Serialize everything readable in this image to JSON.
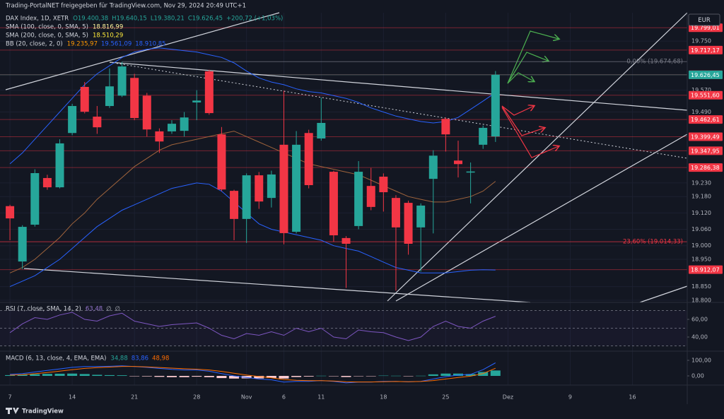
{
  "header": {
    "text": "Trading-PortalNET freigegeben für TradingView.com, Nov 29, 2024 20:49 UTC+1"
  },
  "currency": "EUR",
  "footer": "TradingView",
  "chart_data": {
    "type": "candlestick",
    "up_color": "#26a69a",
    "down_color": "#f23645",
    "grid": true,
    "legend": [
      {
        "name": "DAX Index, 1D, XETR",
        "values": [
          "O19.400,38",
          "H19.640,15",
          "L19.380,21",
          "C19.626,45",
          "+200,72 (+1,03%)"
        ],
        "value_colors": [
          "#26a69a",
          "#26a69a",
          "#26a69a",
          "#26a69a",
          "#26a69a"
        ]
      },
      {
        "name": "SMA (100, close, 0, SMA, 5)",
        "values": [
          "18.816,99"
        ],
        "value_colors": [
          "#fff59d"
        ]
      },
      {
        "name": "SMA (200, close, 0, SMA, 5)",
        "values": [
          "18.510,29"
        ],
        "value_colors": [
          "#ffeb3b"
        ]
      },
      {
        "name": "BB (20, close, 2, 0)",
        "values": [
          "19.235,97",
          "19.561,09",
          "18.910,85"
        ],
        "value_colors": [
          "#ff9800",
          "#2962ff",
          "#2962ff"
        ]
      }
    ],
    "x": [
      0,
      1,
      2,
      3,
      4,
      5,
      6,
      7,
      8,
      9,
      10,
      11,
      12,
      13,
      14,
      15,
      16,
      17,
      18,
      19,
      20,
      21,
      22,
      23,
      24,
      25,
      26,
      27,
      28,
      29,
      30,
      31,
      32,
      33,
      34,
      35,
      36,
      37,
      38,
      39
    ],
    "open": [
      19145,
      18942,
      19077,
      19248,
      19214,
      19413,
      19582,
      19473,
      19512,
      19550,
      19615,
      19550,
      19419,
      19419,
      19421,
      19525,
      19639,
      19408,
      19201,
      19098,
      19258,
      19175,
      19370,
      19051,
      19413,
      19393,
      19271,
      19028,
      19072,
      19219,
      19253,
      19175,
      19157,
      19067,
      19245,
      19465,
      19312,
      19268,
      19370,
      19400.38
    ],
    "high": [
      19150,
      19075,
      19280,
      19260,
      19390,
      19520,
      19600,
      19512,
      19650,
      19674,
      19630,
      19560,
      19430,
      19460,
      19490,
      19570,
      19645,
      19435,
      19205,
      19265,
      19270,
      19275,
      19568,
      19420,
      19425,
      19543,
      19275,
      19035,
      19310,
      19285,
      19265,
      19185,
      19165,
      19155,
      19350,
      19470,
      19385,
      19305,
      19440,
      19640.15
    ],
    "low": [
      19020,
      18915,
      19070,
      19205,
      19210,
      19405,
      19485,
      19410,
      19505,
      19545,
      19460,
      19400,
      19340,
      19410,
      19400,
      19460,
      19480,
      19200,
      19020,
      19010,
      19135,
      19140,
      19005,
      19045,
      19210,
      19385,
      19015,
      18845,
      19060,
      19130,
      19125,
      18835,
      18967,
      18905,
      19045,
      19345,
      19250,
      19155,
      19355,
      19380.21
    ],
    "close": [
      19100,
      19069,
      19266,
      19214,
      19375,
      19512,
      19491,
      19434,
      19584,
      19657,
      19468,
      19426,
      19382,
      19447,
      19470,
      19532,
      19486,
      19206,
      19098,
      19258,
      19162,
      19261,
      19046,
      19370,
      19222,
      19450,
      19038,
      19007,
      19271,
      19142,
      19196,
      19067,
      19007,
      19147,
      19330,
      19408,
      19299,
      19272,
      19432,
      19626.45
    ],
    "overlays": [
      {
        "color": "#2962ff",
        "values": [
          19300,
          19340,
          19390,
          19440,
          19490,
          19540,
          19590,
          19630,
          19660,
          19690,
          19710,
          19720,
          19725,
          19720,
          19715,
          19710,
          19700,
          19690,
          19670,
          19640,
          19615,
          19600,
          19590,
          19575,
          19565,
          19560,
          19550,
          19540,
          19525,
          19505,
          19490,
          19475,
          19465,
          19455,
          19450,
          19455,
          19470,
          19500,
          19530,
          19561.09
        ]
      },
      {
        "color": "#2962ff",
        "values": [
          18850,
          18870,
          18890,
          18920,
          18950,
          18990,
          19030,
          19070,
          19100,
          19130,
          19150,
          19170,
          19190,
          19210,
          19220,
          19230,
          19225,
          19200,
          19160,
          19120,
          19080,
          19060,
          19050,
          19040,
          19030,
          19020,
          19000,
          18990,
          18980,
          18960,
          18940,
          18920,
          18910,
          18900,
          18900,
          18900,
          18905,
          18910,
          18912,
          18910.85
        ]
      },
      {
        "color": "#a0643c",
        "values": [
          18900,
          18920,
          18950,
          18990,
          19030,
          19080,
          19120,
          19170,
          19210,
          19250,
          19290,
          19320,
          19350,
          19370,
          19380,
          19390,
          19400,
          19410,
          19420,
          19400,
          19380,
          19360,
          19340,
          19320,
          19300,
          19290,
          19280,
          19270,
          19260,
          19240,
          19220,
          19200,
          19180,
          19170,
          19160,
          19160,
          19170,
          19180,
          19200,
          19235.97
        ]
      }
    ],
    "xlim": [
      -0.8,
      54.4
    ],
    "xticks": [
      {
        "value": 0,
        "label": "7"
      },
      {
        "value": 5,
        "label": "14"
      },
      {
        "value": 10,
        "label": "21"
      },
      {
        "value": 15,
        "label": "28"
      },
      {
        "value": 19,
        "label": "Nov"
      },
      {
        "value": 22,
        "label": "6"
      },
      {
        "value": 25,
        "label": "11"
      },
      {
        "value": 30,
        "label": "18"
      },
      {
        "value": 35,
        "label": "25"
      },
      {
        "value": 40,
        "label": "Dez"
      },
      {
        "value": 45,
        "label": "9"
      },
      {
        "value": 50,
        "label": "16"
      }
    ],
    "ylim": [
      18792,
      19854
    ],
    "yticks": [
      {
        "value": 18800,
        "label": "18.800"
      },
      {
        "value": 18850,
        "label": "18.850"
      },
      {
        "value": 18950,
        "label": "18.950"
      },
      {
        "value": 19000,
        "label": "19.000"
      },
      {
        "value": 19060,
        "label": "19.060"
      },
      {
        "value": 19120,
        "label": "19.120"
      },
      {
        "value": 19180,
        "label": "19.180"
      },
      {
        "value": 19230,
        "label": "19.230"
      },
      {
        "value": 19490,
        "label": "19.490"
      },
      {
        "value": 19570,
        "label": "19.570"
      },
      {
        "value": 19750,
        "label": "19.750"
      }
    ],
    "price_labels": [
      {
        "value": 19799.01,
        "label": "19.799,01",
        "color": "#f23645"
      },
      {
        "value": 19717.17,
        "label": "19.717,17",
        "color": "#f23645"
      },
      {
        "value": 19626.66,
        "label": "19.626,66",
        "color": "#f23645"
      },
      {
        "value": 19626.45,
        "label": "19.626,45",
        "color": "#26a69a"
      },
      {
        "value": 19551.6,
        "label": "19.551,60",
        "color": "#f23645"
      },
      {
        "value": 19462.61,
        "label": "19.462,61",
        "color": "#f23645"
      },
      {
        "value": 19399.49,
        "label": "19.399,49",
        "color": "#f23645"
      },
      {
        "value": 19347.95,
        "label": "19.347,95",
        "color": "#f23645"
      },
      {
        "value": 19286.38,
        "label": "19.286,38",
        "color": "#f23645"
      },
      {
        "value": 18912.07,
        "label": "18.912,07",
        "color": "#f23645"
      }
    ],
    "fib_levels": [
      {
        "value": 19674.68,
        "label": "0,00% (19.674,68)",
        "color": "#787b86"
      },
      {
        "value": 19014.33,
        "label": "23,60% (19.014,33)",
        "color": "#f23645"
      }
    ],
    "rsi": {
      "title": "RSI (7, close, SMA, 14, 2)",
      "legend_values": [
        "63,48",
        "∅",
        "∅"
      ],
      "value_colors": [
        "#9575cd",
        "#b2b5be",
        "#b2b5be"
      ],
      "color": "#7e57c2",
      "values": [
        45,
        55,
        62,
        60,
        65,
        68,
        60,
        58,
        64,
        67,
        58,
        55,
        52,
        54,
        55,
        56,
        50,
        42,
        38,
        44,
        42,
        46,
        42,
        50,
        46,
        50,
        40,
        38,
        48,
        46,
        45,
        40,
        36,
        40,
        52,
        58,
        52,
        50,
        58,
        63.48
      ],
      "ylim": [
        24,
        79.2
      ],
      "yticks": [
        {
          "value": 60,
          "label": "60,00"
        },
        {
          "value": 40,
          "label": "40,00"
        }
      ],
      "levels": [
        70,
        50,
        30
      ]
    },
    "macd": {
      "title": "MACD (6, 13, close, 4, EMA, EMA)",
      "legend_values": [
        "34,88",
        "83,86",
        "48,98"
      ],
      "value_colors": [
        "#26a69a",
        "#2962ff",
        "#ff6d00"
      ],
      "histogram": [
        5,
        7,
        11,
        13,
        14,
        15,
        12,
        7,
        5,
        4,
        -1,
        -3,
        -6,
        -8,
        -8,
        -5,
        -8,
        -14,
        -17,
        -16,
        -16,
        -13,
        -17,
        -7,
        -4,
        1,
        -2,
        -7,
        -1,
        -1,
        2,
        1,
        -1,
        1,
        10,
        15,
        15,
        12,
        25,
        34.88
      ],
      "macd": [
        10,
        15,
        25,
        35,
        45,
        55,
        60,
        60,
        62,
        65,
        60,
        55,
        48,
        42,
        38,
        38,
        30,
        15,
        0,
        -10,
        -20,
        -25,
        -40,
        -35,
        -35,
        -30,
        -35,
        -45,
        -40,
        -40,
        -35,
        -35,
        -38,
        -35,
        -20,
        -5,
        5,
        10,
        40,
        83.86
      ],
      "signal": [
        5,
        8,
        14,
        22,
        31,
        40,
        48,
        53,
        57,
        61,
        61,
        58,
        54,
        50,
        46,
        43,
        38,
        29,
        17,
        6,
        -4,
        -12,
        -23,
        -28,
        -31,
        -31,
        -33,
        -38,
        -39,
        -39,
        -37,
        -36,
        -37,
        -36,
        -30,
        -20,
        -10,
        -2,
        15,
        48.98
      ],
      "macd_color": "#2962ff",
      "signal_color": "#ff6d00",
      "hist_up_color": "#26a69a",
      "hist_down_color": "#ffcdd2",
      "ylim": [
        -59,
        159
      ],
      "yticks": [
        {
          "value": 100,
          "label": "100,00"
        },
        {
          "value": 0,
          "label": "0,00"
        }
      ]
    }
  }
}
